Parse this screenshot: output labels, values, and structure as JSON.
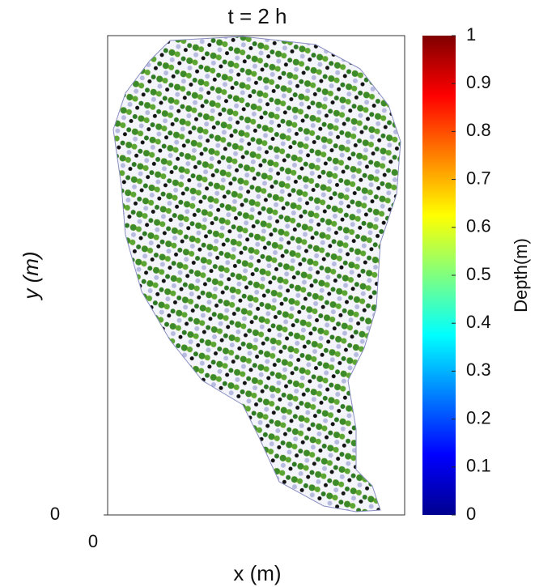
{
  "chart_data": {
    "type": "map",
    "title": "t = 2 h",
    "xlabel": "x (m)",
    "ylabel": "y (m)",
    "xticks": [
      0
    ],
    "yticks": [
      0
    ],
    "colorbar": {
      "label": "Depth(m)",
      "lim": [
        0,
        1
      ],
      "ticks": [
        0,
        0.1,
        0.2,
        0.3,
        0.4,
        0.5,
        0.6,
        0.7,
        0.8,
        0.9,
        1
      ]
    }
  }
}
